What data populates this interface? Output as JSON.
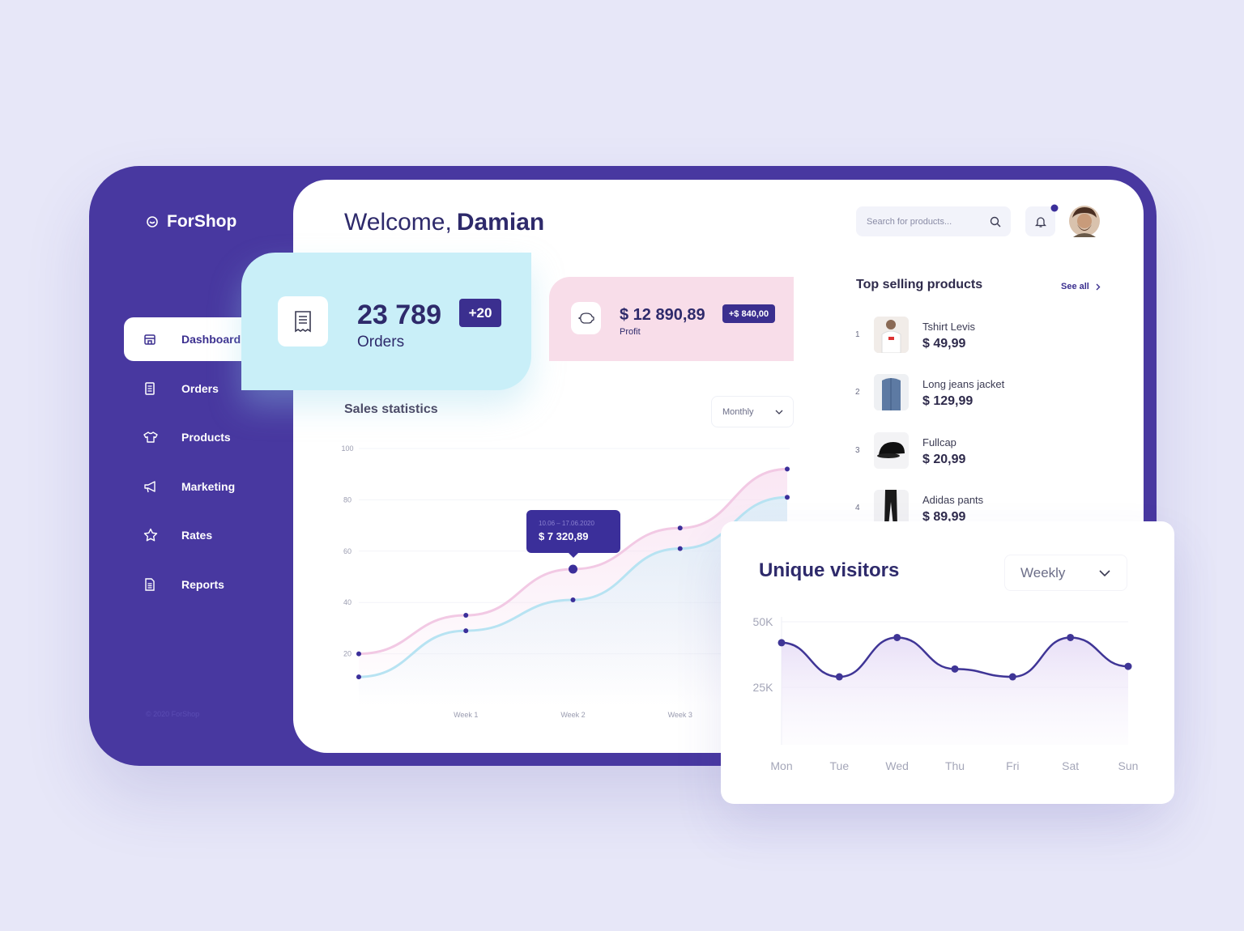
{
  "sidebar": {
    "brand": "ForShop",
    "nav": [
      {
        "label": "Dashboard",
        "active": true
      },
      {
        "label": "Orders",
        "active": false
      },
      {
        "label": "Products",
        "active": false
      },
      {
        "label": "Marketing",
        "active": false
      },
      {
        "label": "Rates",
        "active": false
      },
      {
        "label": "Reports",
        "active": false
      }
    ],
    "footer": "© 2020 ForShop"
  },
  "header": {
    "greeting": "Welcome,",
    "name": "Damian",
    "search_placeholder": "Search for products..."
  },
  "orders_card": {
    "value": "23 789",
    "label": "Orders",
    "badge": "+20"
  },
  "profit_card": {
    "value": "$ 12 890,89",
    "label": "Profit",
    "badge": "+$ 840,00"
  },
  "sales_chart": {
    "type": "line",
    "title": "Sales statistics",
    "period": "Monthly",
    "categories": [
      null,
      "Week 1",
      "Week 2",
      "Week 3",
      null
    ],
    "ylim": [
      0,
      100
    ],
    "yticks": [
      20,
      40,
      60,
      80,
      100
    ],
    "grid": true,
    "series": [
      {
        "color": "#f2c9e4",
        "values": [
          20,
          35,
          53,
          69,
          92
        ]
      },
      {
        "color": "#b7e3f2",
        "values": [
          11,
          29,
          41,
          61,
          81
        ]
      }
    ],
    "tooltip": {
      "date": "10.06 – 17.06.2020",
      "value": "$ 7 320,89"
    }
  },
  "top_products": {
    "title": "Top selling products",
    "see_all": "See all",
    "items": [
      {
        "rank": "1",
        "name": "Tshirt Levis",
        "price": "$ 49,99"
      },
      {
        "rank": "2",
        "name": "Long jeans jacket",
        "price": "$ 129,99"
      },
      {
        "rank": "3",
        "name": "Fullcap",
        "price": "$ 20,99"
      },
      {
        "rank": "4",
        "name": "Adidas pants",
        "price": "$ 89,99"
      }
    ]
  },
  "visitors_chart": {
    "type": "line",
    "title": "Unique visitors",
    "period": "Weekly",
    "categories": [
      "Mon",
      "Tue",
      "Wed",
      "Thu",
      "Fri",
      "Sat",
      "Sun"
    ],
    "ylim": [
      0,
      50000
    ],
    "yticks": [
      {
        "value": 25000,
        "label": "25K"
      },
      {
        "value": 50000,
        "label": "50K"
      }
    ],
    "grid": true,
    "color": "#3f3596",
    "values": [
      42000,
      29000,
      44000,
      32000,
      29000,
      44000,
      33000
    ]
  }
}
